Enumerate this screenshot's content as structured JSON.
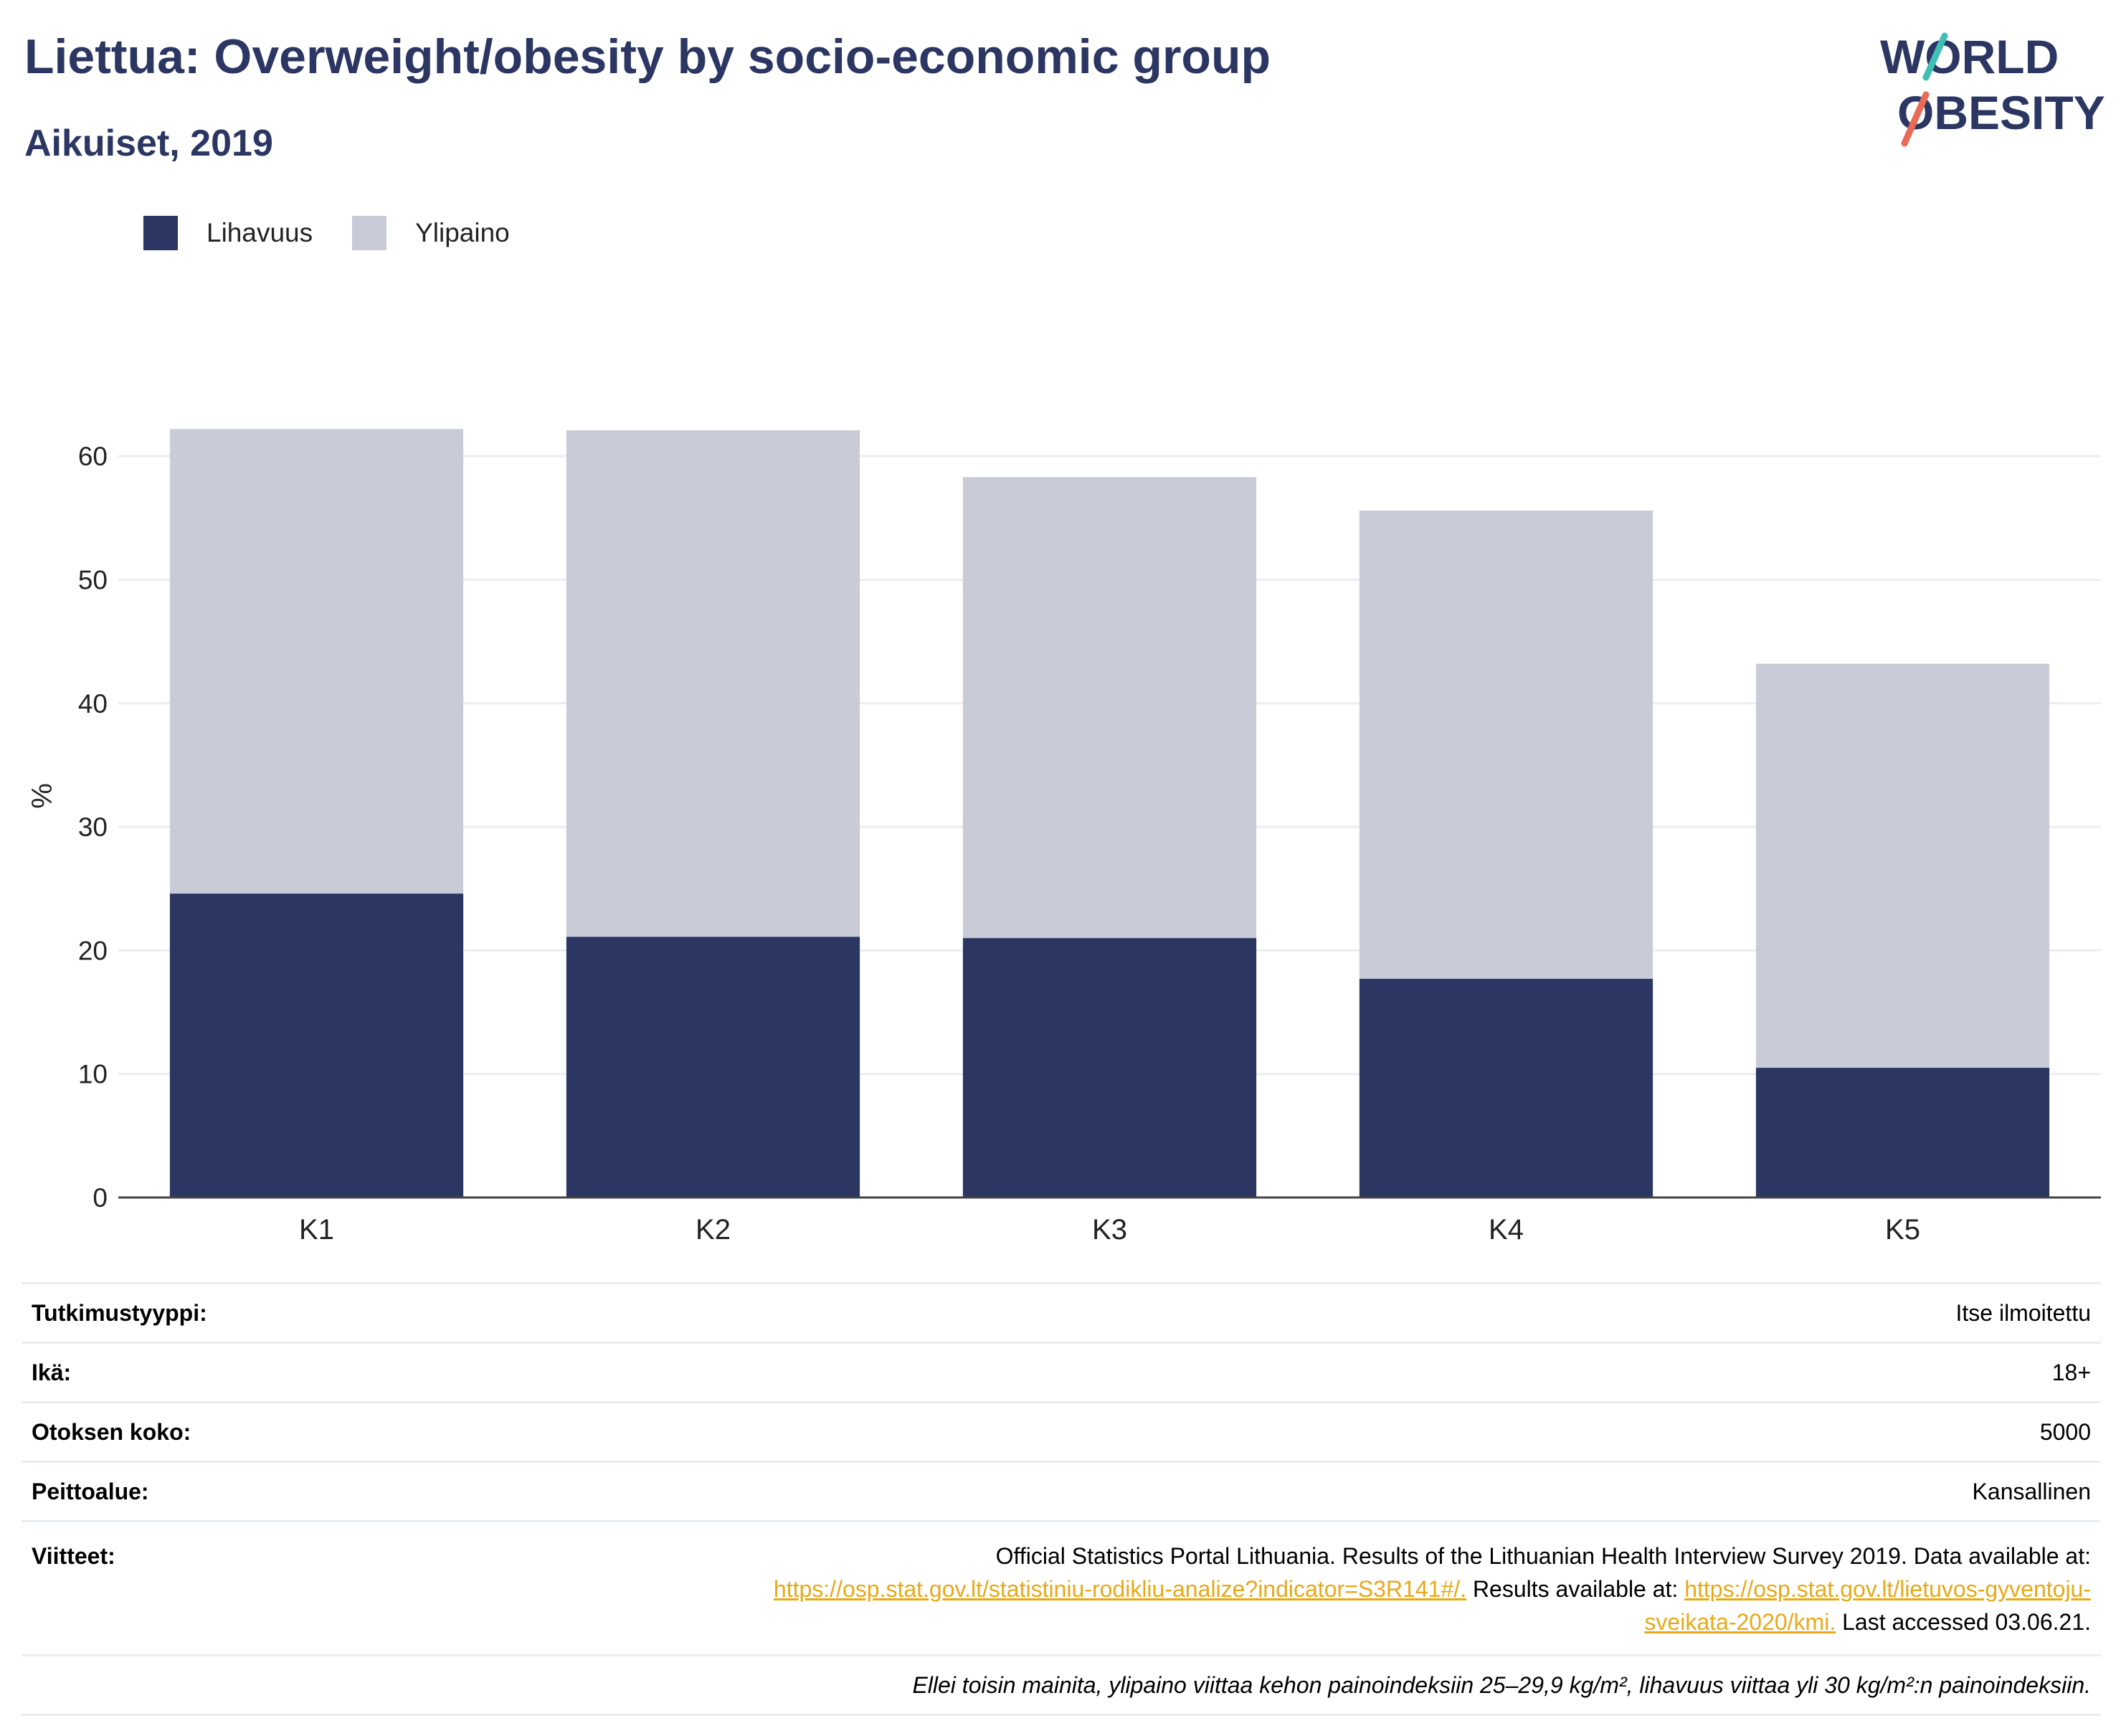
{
  "title": "Liettua: Overweight/obesity by socio-economic group",
  "subtitle": "Aikuiset, 2019",
  "logo": {
    "line1": "WORLD",
    "line2": "OBESITY"
  },
  "colors": {
    "obesity": "#2b3663",
    "overweight": "#c9cbd7",
    "title": "#2b3663",
    "link": "#e8a917"
  },
  "chart_data": {
    "type": "bar",
    "stacked": true,
    "categories": [
      "K1",
      "K2",
      "K3",
      "K4",
      "K5"
    ],
    "series": [
      {
        "name": "Lihavuus",
        "values": [
          24.6,
          21.1,
          21.0,
          17.7,
          10.5
        ]
      },
      {
        "name": "Ylipaino",
        "values": [
          37.6,
          41.0,
          37.3,
          37.9,
          32.7
        ]
      }
    ],
    "title": "Liettua: Overweight/obesity by socio-economic group",
    "subtitle": "Aikuiset, 2019",
    "xlabel": "",
    "ylabel": "%",
    "ylim": [
      0,
      65
    ],
    "yticks": [
      0,
      10,
      20,
      30,
      40,
      50,
      60
    ],
    "grid": true,
    "legend_position": "top-left"
  },
  "info": {
    "survey_type": {
      "label": "Tutkimustyyppi:",
      "value": "Itse ilmoitettu"
    },
    "age": {
      "label": "Ikä:",
      "value": "18+"
    },
    "sample_size": {
      "label": "Otoksen koko:",
      "value": "5000"
    },
    "coverage": {
      "label": "Peittoalue:",
      "value": "Kansallinen"
    },
    "references": {
      "label": "Viitteet:",
      "text1": "Official Statistics Portal Lithuania. Results of the Lithuanian Health Interview Survey 2019. Data available at:",
      "link1": "https://osp.stat.gov.lt/statistiniu-rodikliu-analize?indicator=S3R141#/.",
      "text2": " Results available at: ",
      "link2a": "https://osp.stat.gov.lt/lietuvos-gyventoju-",
      "link2b": "sveikata-2020/kmi.",
      "text3": " Last accessed 03.06.21."
    },
    "note": "Ellei toisin mainita, ylipaino viittaa kehon painoindeksiin 25–29,9 kg/m², lihavuus viittaa yli 30 kg/m²:n painoindeksiin."
  }
}
